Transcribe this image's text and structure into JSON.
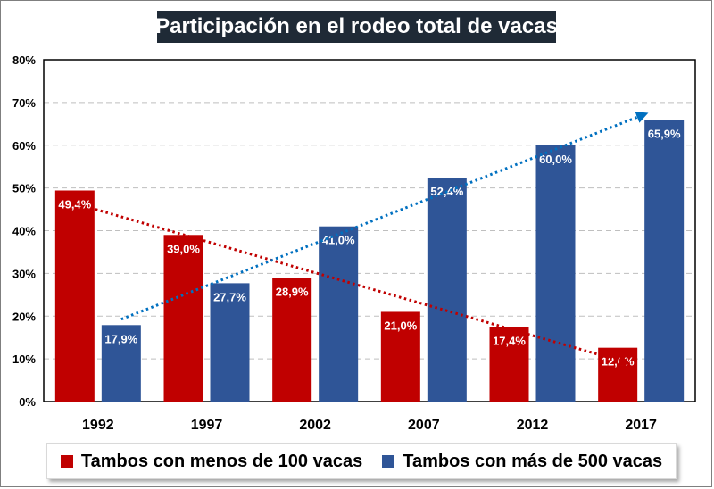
{
  "colors": {
    "title_bg": "#1f2a36",
    "series_red": "#c00000",
    "series_blue": "#2f5597",
    "trend_red": "#c00000",
    "trend_blue": "#0070c0",
    "grid": "#bfbfbf"
  },
  "chart_data": {
    "type": "bar",
    "title": "Participación en el rodeo total de vacas",
    "categories": [
      "1992",
      "1997",
      "2002",
      "2007",
      "2012",
      "2017"
    ],
    "series": [
      {
        "name": "Tambos con menos de 100 vacas",
        "values": [
          49.4,
          39.0,
          28.9,
          21.0,
          17.4,
          12.6
        ],
        "labels": [
          "49,4%",
          "39,0%",
          "28,9%",
          "21,0%",
          "17,4%",
          "12,6%"
        ],
        "trendline": {
          "type": "linear",
          "style": "dotted",
          "arrow": true
        }
      },
      {
        "name": "Tambos con más de 500 vacas",
        "values": [
          17.9,
          27.7,
          41.0,
          52.4,
          60.0,
          65.9
        ],
        "labels": [
          "17,9%",
          "27,7%",
          "41,0%",
          "52,4%",
          "60,0%",
          "65,9%"
        ],
        "trendline": {
          "type": "linear",
          "style": "dotted",
          "arrow": true
        }
      }
    ],
    "ylim": [
      0,
      80
    ],
    "yticks": [
      0,
      10,
      20,
      30,
      40,
      50,
      60,
      70,
      80
    ],
    "ytick_labels": [
      "0%",
      "10%",
      "20%",
      "30%",
      "40%",
      "50%",
      "60%",
      "70%",
      "80%"
    ],
    "xlabel": "",
    "ylabel": "",
    "grid": true,
    "legend": "bottom"
  }
}
